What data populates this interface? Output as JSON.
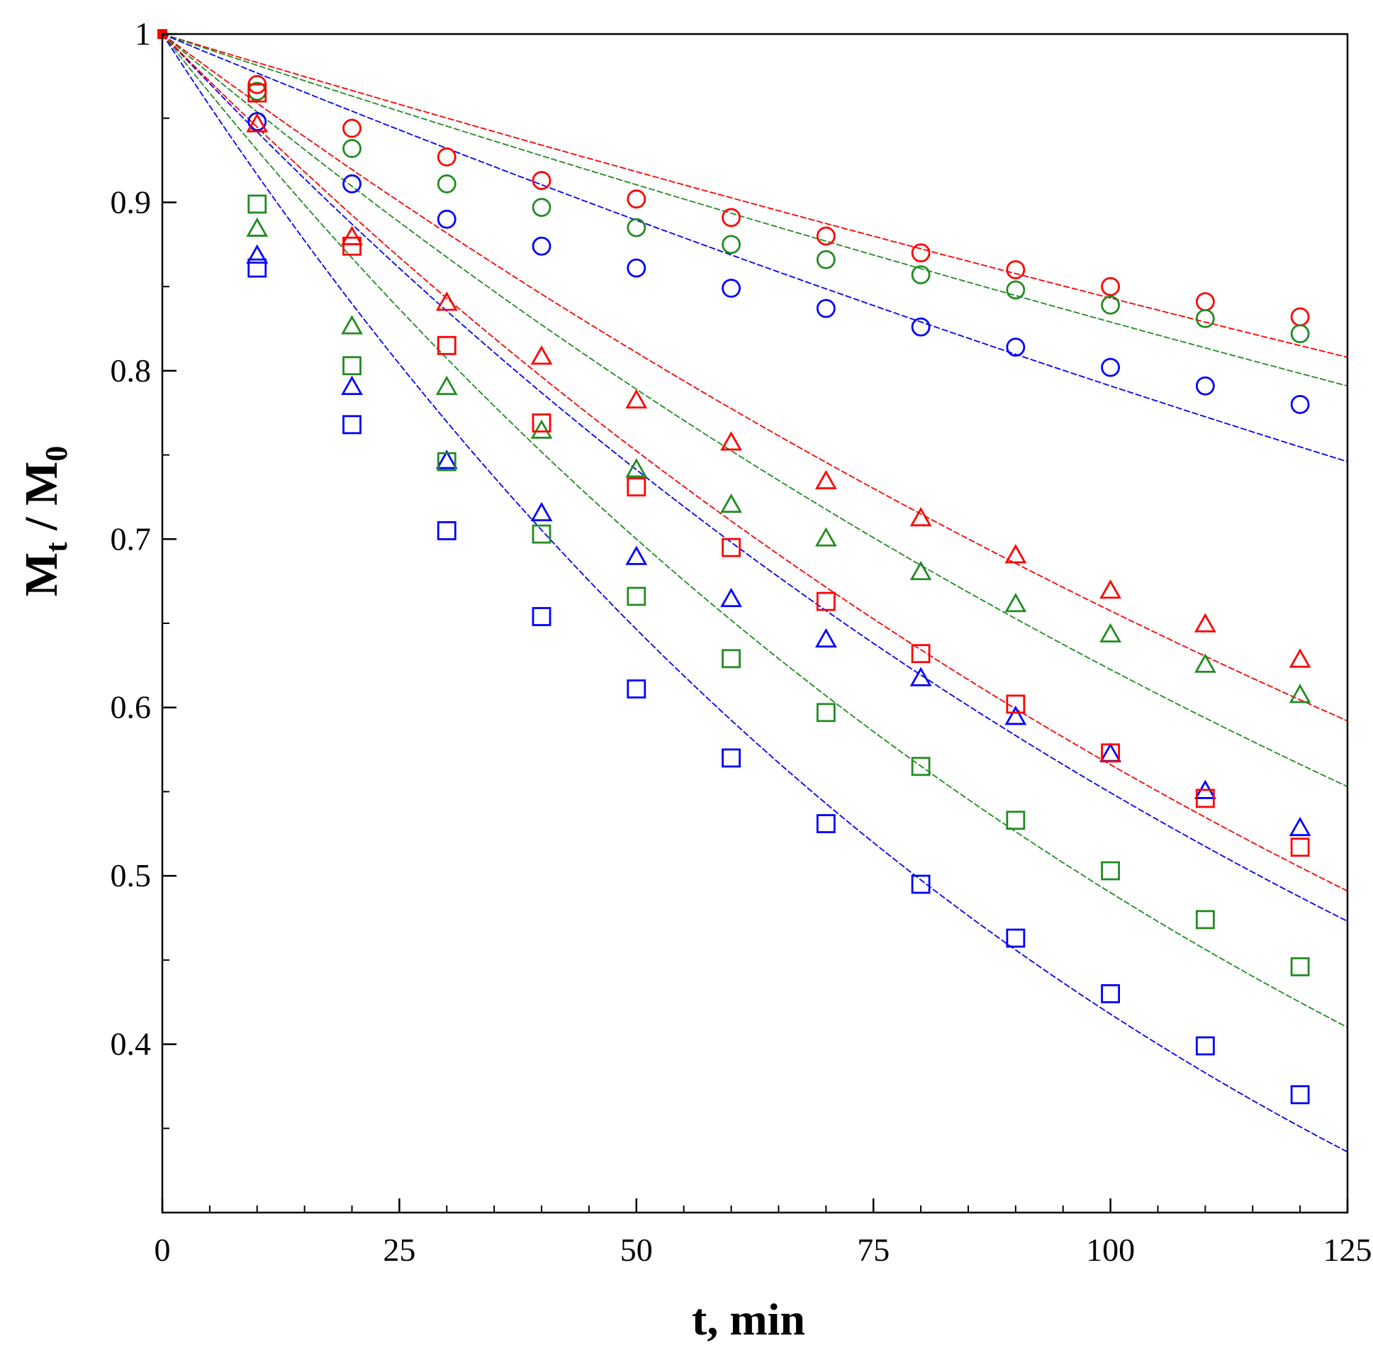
{
  "chart_data": {
    "type": "scatter",
    "title": "",
    "xlabel": "t, min",
    "ylabel": {
      "main": "M",
      "sub1": "t",
      "sep": " / ",
      "main2": "M",
      "sub2": "0"
    },
    "xlim": [
      0,
      125
    ],
    "ylim": [
      0.3,
      1.0
    ],
    "x_ticks": [
      0,
      25,
      50,
      75,
      100,
      125
    ],
    "x_tick_labels": [
      "0",
      "25",
      "50",
      "75",
      "100",
      "125"
    ],
    "y_ticks": [
      0.4,
      0.5,
      0.6,
      0.7,
      0.8,
      0.9,
      1.0
    ],
    "y_tick_labels": [
      "0.4",
      "0.5",
      "0.6",
      "0.7",
      "0.8",
      "0.9",
      "1"
    ],
    "grid": false,
    "legend": "none",
    "x": [
      10,
      20,
      30,
      40,
      50,
      60,
      70,
      80,
      90,
      100,
      110,
      120
    ],
    "series": [
      {
        "marker": "circle",
        "color": "#ff0000",
        "values": [
          0.97,
          0.944,
          0.927,
          0.913,
          0.902,
          0.891,
          0.88,
          0.87,
          0.86,
          0.85,
          0.841,
          0.832
        ],
        "fit_end": 0.808
      },
      {
        "marker": "circle",
        "color": "#228b22",
        "values": [
          0.966,
          0.932,
          0.911,
          0.897,
          0.885,
          0.875,
          0.866,
          0.857,
          0.848,
          0.839,
          0.831,
          0.822
        ],
        "fit_end": 0.791
      },
      {
        "marker": "circle",
        "color": "#0000ff",
        "values": [
          0.948,
          0.911,
          0.89,
          0.874,
          0.861,
          0.849,
          0.837,
          0.826,
          0.814,
          0.802,
          0.791,
          0.78
        ],
        "fit_end": 0.746
      },
      {
        "marker": "triangle",
        "color": "#ff0000",
        "values": [
          0.946,
          0.879,
          0.84,
          0.808,
          0.782,
          0.757,
          0.734,
          0.712,
          0.69,
          0.669,
          0.649,
          0.628
        ],
        "fit_end": 0.592
      },
      {
        "marker": "triangle",
        "color": "#228b22",
        "values": [
          0.884,
          0.826,
          0.79,
          0.764,
          0.741,
          0.72,
          0.7,
          0.68,
          0.661,
          0.643,
          0.625,
          0.607
        ],
        "fit_end": 0.553
      },
      {
        "marker": "triangle",
        "color": "#0000ff",
        "values": [
          0.868,
          0.79,
          0.746,
          0.715,
          0.689,
          0.664,
          0.64,
          0.617,
          0.594,
          0.572,
          0.55,
          0.528
        ],
        "fit_end": 0.473
      },
      {
        "marker": "square",
        "color": "#ff0000",
        "values": [
          0.965,
          0.874,
          0.815,
          0.769,
          0.731,
          0.695,
          0.663,
          0.632,
          0.602,
          0.573,
          0.546,
          0.517
        ],
        "fit_end": 0.491
      },
      {
        "marker": "square",
        "color": "#228b22",
        "values": [
          0.899,
          0.803,
          0.746,
          0.703,
          0.666,
          0.629,
          0.597,
          0.565,
          0.533,
          0.503,
          0.474,
          0.446
        ],
        "fit_end": 0.41
      },
      {
        "marker": "square",
        "color": "#0000ff",
        "values": [
          0.861,
          0.768,
          0.705,
          0.654,
          0.611,
          0.57,
          0.531,
          0.495,
          0.463,
          0.43,
          0.399,
          0.37
        ],
        "fit_end": 0.336
      }
    ]
  }
}
